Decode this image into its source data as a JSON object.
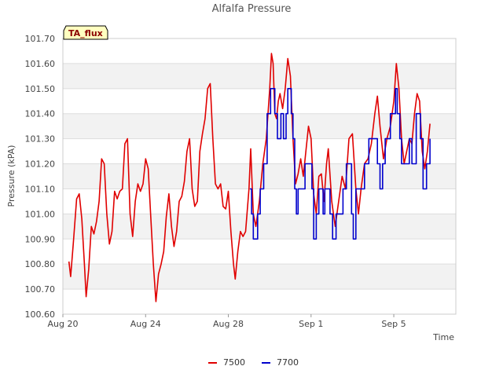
{
  "chart_data": {
    "type": "line",
    "title": "Alfalfa Pressure",
    "badge": "TA_flux",
    "xlabel": "Time",
    "ylabel": "Pressure (kPA)",
    "xlim": [
      "2023-08-20",
      "2023-09-08"
    ],
    "ylim": [
      100.6,
      101.7
    ],
    "x_ticks": [
      {
        "date": "2023-08-20",
        "label": "Aug 20"
      },
      {
        "date": "2023-08-24",
        "label": "Aug 24"
      },
      {
        "date": "2023-08-28",
        "label": "Aug 28"
      },
      {
        "date": "2023-09-01",
        "label": "Sep 1"
      },
      {
        "date": "2023-09-05",
        "label": "Sep 5"
      }
    ],
    "y_ticks": [
      "100.60",
      "100.70",
      "100.80",
      "100.90",
      "101.00",
      "101.10",
      "101.20",
      "101.30",
      "101.40",
      "101.50",
      "101.60",
      "101.70"
    ],
    "grid": true,
    "band_fill": "#f2f2f2",
    "legend_position": "bottom",
    "series": [
      {
        "name": "7500",
        "color": "#e00000",
        "points": [
          [
            "2023-08-20 07:00",
            100.81
          ],
          [
            "2023-08-20 09:00",
            100.75
          ],
          [
            "2023-08-20 12:00",
            100.88
          ],
          [
            "2023-08-20 16:00",
            101.06
          ],
          [
            "2023-08-20 19:00",
            101.08
          ],
          [
            "2023-08-20 22:00",
            100.98
          ],
          [
            "2023-08-21 01:00",
            100.8
          ],
          [
            "2023-08-21 03:00",
            100.67
          ],
          [
            "2023-08-21 06:00",
            100.78
          ],
          [
            "2023-08-21 09:00",
            100.95
          ],
          [
            "2023-08-21 12:00",
            100.92
          ],
          [
            "2023-08-21 15:00",
            100.97
          ],
          [
            "2023-08-21 18:00",
            101.05
          ],
          [
            "2023-08-21 21:00",
            101.22
          ],
          [
            "2023-08-22 00:00",
            101.2
          ],
          [
            "2023-08-22 03:00",
            101.0
          ],
          [
            "2023-08-22 06:00",
            100.88
          ],
          [
            "2023-08-22 09:00",
            100.93
          ],
          [
            "2023-08-22 12:00",
            101.09
          ],
          [
            "2023-08-22 15:00",
            101.06
          ],
          [
            "2023-08-22 18:00",
            101.09
          ],
          [
            "2023-08-22 21:00",
            101.1
          ],
          [
            "2023-08-23 00:00",
            101.28
          ],
          [
            "2023-08-23 03:00",
            101.3
          ],
          [
            "2023-08-23 06:00",
            101.0
          ],
          [
            "2023-08-23 09:00",
            100.91
          ],
          [
            "2023-08-23 12:00",
            101.05
          ],
          [
            "2023-08-23 15:00",
            101.12
          ],
          [
            "2023-08-23 18:00",
            101.09
          ],
          [
            "2023-08-23 21:00",
            101.12
          ],
          [
            "2023-08-24 00:00",
            101.22
          ],
          [
            "2023-08-24 03:00",
            101.18
          ],
          [
            "2023-08-24 06:00",
            100.99
          ],
          [
            "2023-08-24 09:00",
            100.8
          ],
          [
            "2023-08-24 12:00",
            100.65
          ],
          [
            "2023-08-24 15:00",
            100.76
          ],
          [
            "2023-08-24 18:00",
            100.8
          ],
          [
            "2023-08-24 21:00",
            100.85
          ],
          [
            "2023-08-25 00:00",
            100.99
          ],
          [
            "2023-08-25 03:00",
            101.08
          ],
          [
            "2023-08-25 06:00",
            100.95
          ],
          [
            "2023-08-25 09:00",
            100.87
          ],
          [
            "2023-08-25 12:00",
            100.93
          ],
          [
            "2023-08-25 15:00",
            101.05
          ],
          [
            "2023-08-25 18:00",
            101.07
          ],
          [
            "2023-08-25 21:00",
            101.13
          ],
          [
            "2023-08-26 00:00",
            101.25
          ],
          [
            "2023-08-26 03:00",
            101.3
          ],
          [
            "2023-08-26 06:00",
            101.1
          ],
          [
            "2023-08-26 09:00",
            101.03
          ],
          [
            "2023-08-26 12:00",
            101.05
          ],
          [
            "2023-08-26 15:00",
            101.25
          ],
          [
            "2023-08-26 18:00",
            101.32
          ],
          [
            "2023-08-26 21:00",
            101.38
          ],
          [
            "2023-08-27 00:00",
            101.5
          ],
          [
            "2023-08-27 03:00",
            101.52
          ],
          [
            "2023-08-27 06:00",
            101.3
          ],
          [
            "2023-08-27 09:00",
            101.12
          ],
          [
            "2023-08-27 12:00",
            101.1
          ],
          [
            "2023-08-27 15:00",
            101.12
          ],
          [
            "2023-08-27 18:00",
            101.03
          ],
          [
            "2023-08-27 21:00",
            101.02
          ],
          [
            "2023-08-28 00:00",
            101.09
          ],
          [
            "2023-08-28 03:00",
            100.93
          ],
          [
            "2023-08-28 06:00",
            100.8
          ],
          [
            "2023-08-28 08:00",
            100.74
          ],
          [
            "2023-08-28 11:00",
            100.85
          ],
          [
            "2023-08-28 14:00",
            100.93
          ],
          [
            "2023-08-28 17:00",
            100.91
          ],
          [
            "2023-08-28 20:00",
            100.93
          ],
          [
            "2023-08-29 00:00",
            101.1
          ],
          [
            "2023-08-29 02:00",
            101.26
          ],
          [
            "2023-08-29 05:00",
            101.0
          ],
          [
            "2023-08-29 08:00",
            100.95
          ],
          [
            "2023-08-29 12:00",
            101.05
          ],
          [
            "2023-08-29 16:00",
            101.2
          ],
          [
            "2023-08-29 20:00",
            101.3
          ],
          [
            "2023-08-30 00:00",
            101.5
          ],
          [
            "2023-08-30 02:00",
            101.64
          ],
          [
            "2023-08-30 04:00",
            101.6
          ],
          [
            "2023-08-30 06:00",
            101.4
          ],
          [
            "2023-08-30 08:00",
            101.38
          ],
          [
            "2023-08-30 10:00",
            101.45
          ],
          [
            "2023-08-30 12:00",
            101.48
          ],
          [
            "2023-08-30 15:00",
            101.42
          ],
          [
            "2023-08-30 18:00",
            101.5
          ],
          [
            "2023-08-30 21:00",
            101.62
          ],
          [
            "2023-08-31 00:00",
            101.55
          ],
          [
            "2023-08-31 03:00",
            101.3
          ],
          [
            "2023-08-31 06:00",
            101.12
          ],
          [
            "2023-08-31 09:00",
            101.16
          ],
          [
            "2023-08-31 12:00",
            101.22
          ],
          [
            "2023-08-31 15:00",
            101.15
          ],
          [
            "2023-08-31 18:00",
            101.25
          ],
          [
            "2023-08-31 21:00",
            101.35
          ],
          [
            "2023-09-01 00:00",
            101.3
          ],
          [
            "2023-09-01 03:00",
            101.08
          ],
          [
            "2023-09-01 06:00",
            101.0
          ],
          [
            "2023-09-01 09:00",
            101.15
          ],
          [
            "2023-09-01 12:00",
            101.16
          ],
          [
            "2023-09-01 15:00",
            101.05
          ],
          [
            "2023-09-01 18:00",
            101.2
          ],
          [
            "2023-09-01 20:00",
            101.26
          ],
          [
            "2023-09-02 00:00",
            101.05
          ],
          [
            "2023-09-02 04:00",
            100.95
          ],
          [
            "2023-09-02 08:00",
            101.05
          ],
          [
            "2023-09-02 12:00",
            101.15
          ],
          [
            "2023-09-02 16:00",
            101.1
          ],
          [
            "2023-09-02 20:00",
            101.3
          ],
          [
            "2023-09-03 00:00",
            101.32
          ],
          [
            "2023-09-03 04:00",
            101.1
          ],
          [
            "2023-09-03 07:00",
            101.0
          ],
          [
            "2023-09-03 10:00",
            101.1
          ],
          [
            "2023-09-03 14:00",
            101.2
          ],
          [
            "2023-09-03 18:00",
            101.22
          ],
          [
            "2023-09-03 22:00",
            101.28
          ],
          [
            "2023-09-04 02:00",
            101.4
          ],
          [
            "2023-09-04 05:00",
            101.47
          ],
          [
            "2023-09-04 08:00",
            101.35
          ],
          [
            "2023-09-04 12:00",
            101.22
          ],
          [
            "2023-09-04 16:00",
            101.3
          ],
          [
            "2023-09-04 20:00",
            101.35
          ],
          [
            "2023-09-05 00:00",
            101.45
          ],
          [
            "2023-09-05 03:00",
            101.6
          ],
          [
            "2023-09-05 06:00",
            101.5
          ],
          [
            "2023-09-05 09:00",
            101.3
          ],
          [
            "2023-09-05 12:00",
            101.2
          ],
          [
            "2023-09-05 15:00",
            101.25
          ],
          [
            "2023-09-05 18:00",
            101.3
          ],
          [
            "2023-09-05 21:00",
            101.28
          ],
          [
            "2023-09-06 00:00",
            101.4
          ],
          [
            "2023-09-06 03:00",
            101.48
          ],
          [
            "2023-09-06 06:00",
            101.45
          ],
          [
            "2023-09-06 09:00",
            101.25
          ],
          [
            "2023-09-06 12:00",
            101.18
          ],
          [
            "2023-09-06 15:00",
            101.25
          ],
          [
            "2023-09-06 18:00",
            101.36
          ]
        ]
      },
      {
        "name": "7700",
        "color": "#0000cc",
        "step": true,
        "points": [
          [
            "2023-08-29 01:00",
            101.1
          ],
          [
            "2023-08-29 03:00",
            101.0
          ],
          [
            "2023-08-29 05:00",
            100.9
          ],
          [
            "2023-08-29 10:00",
            101.0
          ],
          [
            "2023-08-29 13:00",
            101.1
          ],
          [
            "2023-08-29 17:00",
            101.2
          ],
          [
            "2023-08-29 21:00",
            101.4
          ],
          [
            "2023-08-30 01:00",
            101.5
          ],
          [
            "2023-08-30 06:00",
            101.4
          ],
          [
            "2023-08-30 09:00",
            101.3
          ],
          [
            "2023-08-30 13:00",
            101.4
          ],
          [
            "2023-08-30 16:00",
            101.3
          ],
          [
            "2023-08-30 19:00",
            101.4
          ],
          [
            "2023-08-30 21:00",
            101.5
          ],
          [
            "2023-08-31 01:00",
            101.4
          ],
          [
            "2023-08-31 03:00",
            101.3
          ],
          [
            "2023-08-31 05:00",
            101.1
          ],
          [
            "2023-08-31 07:00",
            101.0
          ],
          [
            "2023-08-31 09:00",
            101.1
          ],
          [
            "2023-08-31 17:00",
            101.2
          ],
          [
            "2023-09-01 00:00",
            101.2
          ],
          [
            "2023-09-01 01:00",
            101.1
          ],
          [
            "2023-09-01 03:00",
            100.9
          ],
          [
            "2023-09-01 06:00",
            101.0
          ],
          [
            "2023-09-01 09:00",
            101.1
          ],
          [
            "2023-09-01 14:00",
            101.0
          ],
          [
            "2023-09-01 16:00",
            101.1
          ],
          [
            "2023-09-01 22:00",
            101.0
          ],
          [
            "2023-09-02 01:00",
            100.9
          ],
          [
            "2023-09-02 05:00",
            101.0
          ],
          [
            "2023-09-02 13:00",
            101.1
          ],
          [
            "2023-09-02 17:00",
            101.2
          ],
          [
            "2023-09-02 23:00",
            101.0
          ],
          [
            "2023-09-03 01:00",
            100.9
          ],
          [
            "2023-09-03 04:00",
            101.1
          ],
          [
            "2023-09-03 14:00",
            101.2
          ],
          [
            "2023-09-03 19:00",
            101.3
          ],
          [
            "2023-09-04 01:00",
            101.3
          ],
          [
            "2023-09-04 05:00",
            101.2
          ],
          [
            "2023-09-04 08:00",
            101.1
          ],
          [
            "2023-09-04 11:00",
            101.2
          ],
          [
            "2023-09-04 14:00",
            101.3
          ],
          [
            "2023-09-04 20:00",
            101.4
          ],
          [
            "2023-09-05 02:00",
            101.5
          ],
          [
            "2023-09-05 04:00",
            101.4
          ],
          [
            "2023-09-05 07:00",
            101.3
          ],
          [
            "2023-09-05 09:00",
            101.2
          ],
          [
            "2023-09-05 18:00",
            101.3
          ],
          [
            "2023-09-05 21:00",
            101.2
          ],
          [
            "2023-09-06 02:00",
            101.4
          ],
          [
            "2023-09-06 07:00",
            101.3
          ],
          [
            "2023-09-06 10:00",
            101.1
          ],
          [
            "2023-09-06 14:00",
            101.2
          ],
          [
            "2023-09-06 18:00",
            101.3
          ]
        ]
      }
    ]
  }
}
